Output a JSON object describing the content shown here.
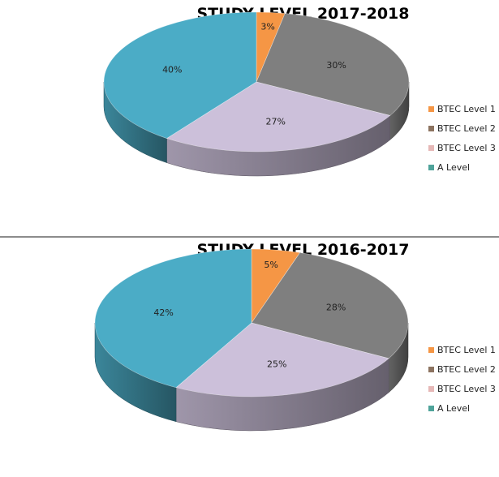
{
  "chart_data": [
    {
      "type": "pie",
      "title": "STUDY LEVEL 2017-2018",
      "categories": [
        "BTEC Level 1",
        "BTEC Level 2",
        "BTEC Level 3",
        "A Level"
      ],
      "values": [
        3,
        30,
        27,
        40
      ],
      "labels": [
        "3%",
        "30%",
        "27%",
        "40%"
      ],
      "colors": [
        "#f59645",
        "#7f7f7f",
        "#ccc0da",
        "#4bacc6"
      ],
      "legend_swatches": [
        "#f59645",
        "#8c7360",
        "#e6b8b7",
        "#4fa39a"
      ],
      "legend_position": "right",
      "style": "3d"
    },
    {
      "type": "pie",
      "title": "STUDY LEVEL 2016-2017",
      "categories": [
        "BTEC Level 1",
        "BTEC Level 2",
        "BTEC Level 3",
        "A Level"
      ],
      "values": [
        5,
        28,
        25,
        42
      ],
      "labels": [
        "5%",
        "28%",
        "25%",
        "42%"
      ],
      "colors": [
        "#f59645",
        "#7f7f7f",
        "#ccc0da",
        "#4bacc6"
      ],
      "legend_swatches": [
        "#f59645",
        "#8c7360",
        "#e6b8b7",
        "#4fa39a"
      ],
      "legend_position": "right",
      "style": "3d"
    }
  ]
}
